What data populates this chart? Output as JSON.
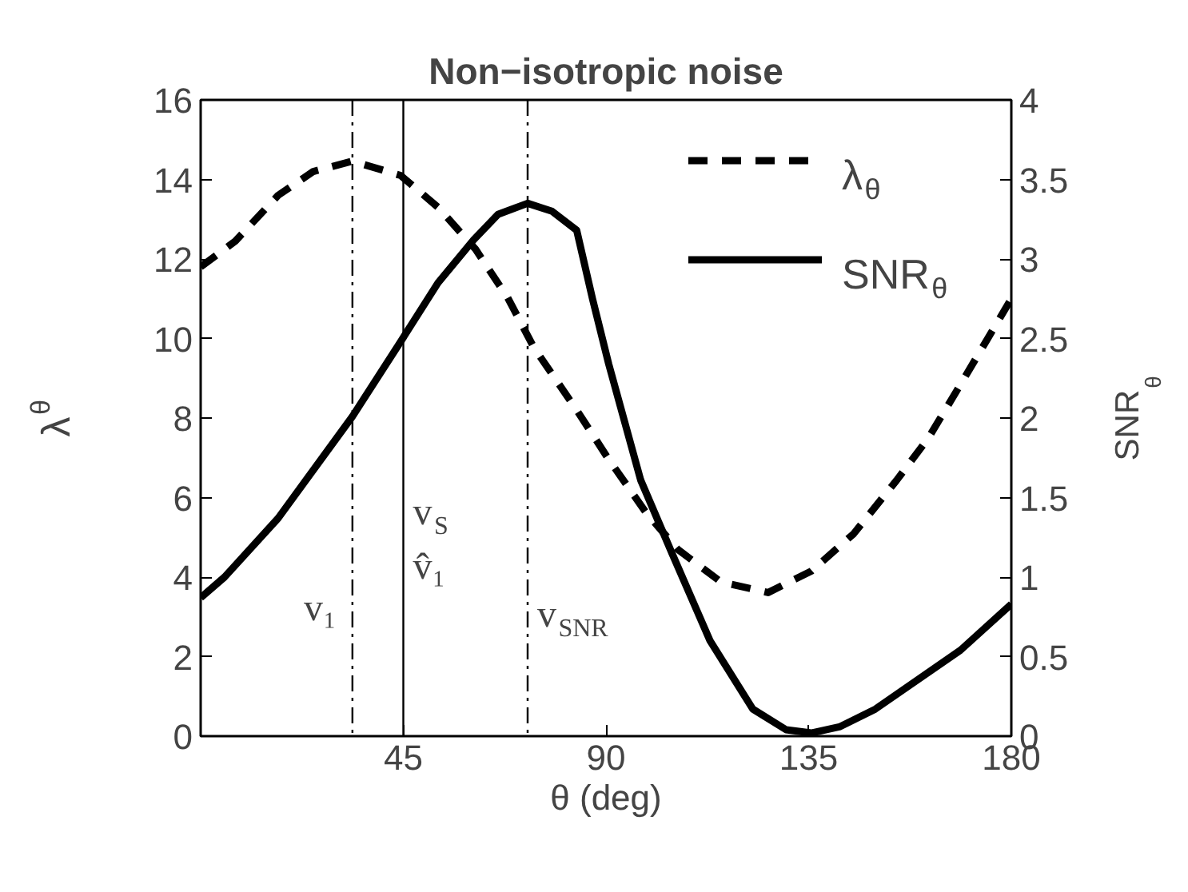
{
  "chart_data": {
    "type": "line",
    "title": "Non−isotropic noise",
    "xlabel": "θ (deg)",
    "ylabel": "λ$_{θ}$",
    "y2label": "SNR$_{θ}$",
    "xlim": [
      0,
      180
    ],
    "xticks": [
      45,
      90,
      135,
      180
    ],
    "ylim": [
      0,
      16
    ],
    "yticks": [
      0,
      2,
      4,
      6,
      8,
      10,
      12,
      14,
      16
    ],
    "y2lim": [
      0,
      4
    ],
    "y2ticks": [
      0,
      0.5,
      1,
      1.5,
      2,
      2.5,
      3,
      3.5,
      4
    ],
    "legend": "top right",
    "grid": false,
    "series": [
      {
        "name": "λ$_{θ}$",
        "color": "#000000",
        "line_style": "dashed",
        "x": [
          0,
          7.7,
          17.2,
          25,
          33.7,
          44.4,
          52.7,
          61,
          68.1,
          74,
          83.5,
          90.6,
          98.9,
          106,
          115.5,
          126,
          135.6,
          145,
          154.5,
          161.6,
          168.7,
          180
        ],
        "values": [
          11.8,
          12.45,
          13.6,
          14.2,
          14.46,
          14.1,
          13.3,
          12.25,
          11.04,
          9.77,
          8.2,
          6.96,
          5.62,
          4.69,
          3.88,
          3.61,
          4.15,
          5.09,
          6.43,
          7.5,
          8.84,
          11
        ]
      },
      {
        "name": "SNR$_{θ}$",
        "color": "#000000",
        "line_style": "solid",
        "axis": "y2",
        "x": [
          0,
          5.3,
          17.2,
          33.7,
          44.4,
          52.7,
          60.6,
          66,
          72.6,
          78,
          83.5,
          87,
          90.6,
          97.7,
          104.8,
          113.1,
          122.6,
          130,
          135.6,
          142,
          149.8,
          168.7,
          180
        ],
        "values": [
          0.87,
          1.0,
          1.37,
          2.01,
          2.48,
          2.85,
          3.12,
          3.28,
          3.35,
          3.3,
          3.18,
          2.75,
          2.34,
          1.61,
          1.14,
          0.6,
          0.17,
          0.04,
          0.02,
          0.06,
          0.17,
          0.54,
          0.83
        ]
      }
    ],
    "ref_lines": [
      {
        "axis": "x",
        "value": 33.7,
        "label": "v₁",
        "line_style": "dashdot"
      },
      {
        "axis": "x",
        "value": 45,
        "label": "v$_{S}$\nv̂₁",
        "line_style": "solid"
      },
      {
        "axis": "x",
        "value": 72.6,
        "label": "v$_{SNR}$",
        "line_style": "dashdot"
      }
    ]
  }
}
